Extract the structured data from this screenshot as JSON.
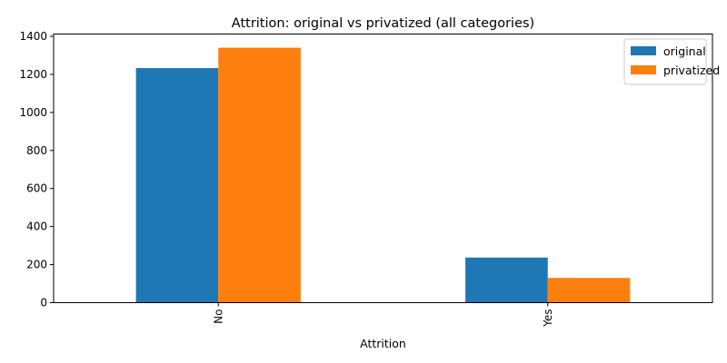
{
  "chart_data": {
    "type": "bar",
    "title": "Attrition: original vs privatized (all categories)",
    "xlabel": "Attrition",
    "ylabel": "",
    "categories": [
      "No",
      "Yes"
    ],
    "series": [
      {
        "name": "original",
        "color": "#1f77b4",
        "values": [
          1233,
          237
        ]
      },
      {
        "name": "privatized",
        "color": "#ff7f0e",
        "values": [
          1340,
          130
        ]
      }
    ],
    "ylim": [
      0,
      1412
    ],
    "yticks": [
      0,
      200,
      400,
      600,
      800,
      1000,
      1200,
      1400
    ],
    "grid": false,
    "legend_position": "top-right",
    "x_tick_rotation": "vertical"
  }
}
